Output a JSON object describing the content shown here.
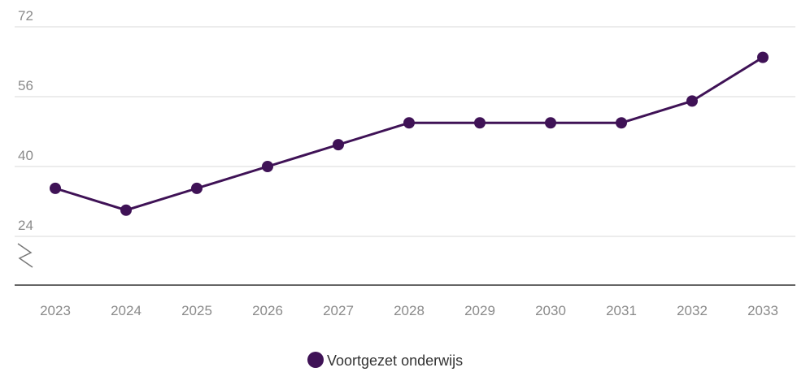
{
  "chart_data": {
    "type": "line",
    "categories": [
      "2023",
      "2024",
      "2025",
      "2026",
      "2027",
      "2028",
      "2029",
      "2030",
      "2031",
      "2032",
      "2033"
    ],
    "series": [
      {
        "name": "Voortgezet onderwijs",
        "color": "#3f1256",
        "values": [
          35,
          30,
          35,
          40,
          45,
          50,
          50,
          50,
          50,
          55,
          65
        ]
      }
    ],
    "ylim": [
      24,
      72
    ],
    "yticks": [
      24,
      40,
      56,
      72
    ],
    "grid": true,
    "legend": "bottom"
  }
}
